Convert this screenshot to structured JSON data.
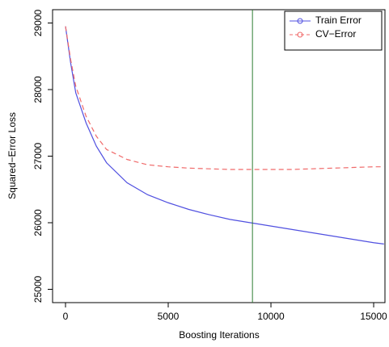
{
  "chart_data": {
    "type": "line",
    "x_label": "Boosting Iterations",
    "y_label": "Squared−Error Loss",
    "x": [
      0,
      250,
      500,
      1000,
      1500,
      2000,
      3000,
      4000,
      5000,
      6000,
      7000,
      8000,
      9000,
      10000,
      11000,
      12000,
      13000,
      14000,
      15000,
      15500
    ],
    "series": [
      {
        "name": "Train Error",
        "color": "#5050e0",
        "dash": false,
        "values": [
          28950,
          28400,
          27950,
          27500,
          27150,
          26900,
          26600,
          26420,
          26300,
          26200,
          26120,
          26050,
          26000,
          25950,
          25900,
          25850,
          25800,
          25750,
          25700,
          25680
        ]
      },
      {
        "name": "CV−Error",
        "color": "#f06a6a",
        "dash": true,
        "values": [
          28950,
          28450,
          28050,
          27600,
          27300,
          27100,
          26950,
          26870,
          26840,
          26820,
          26810,
          26800,
          26800,
          26800,
          26800,
          26810,
          26820,
          26830,
          26840,
          26840
        ]
      }
    ],
    "vline": {
      "x": 9100,
      "color": "#2e7d32"
    },
    "xlim": [
      -630,
      15550
    ],
    "ylim": [
      24800,
      29200
    ],
    "xticks": [
      0,
      5000,
      10000,
      15000
    ],
    "yticks": [
      25000,
      26000,
      27000,
      28000,
      29000
    ],
    "legend": "top-right"
  }
}
